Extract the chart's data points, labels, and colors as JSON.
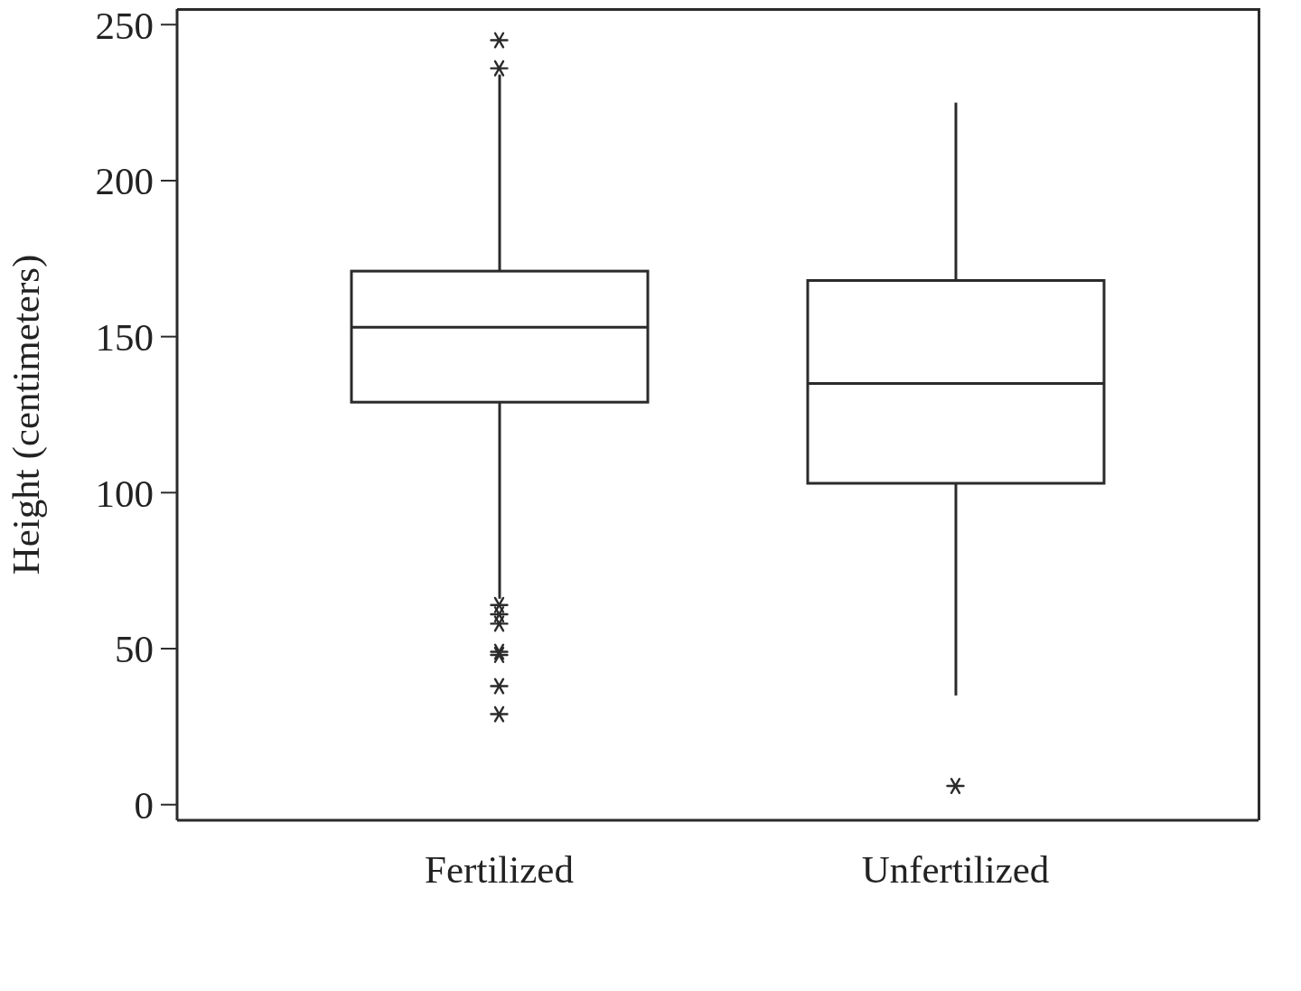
{
  "chart_data": {
    "type": "box",
    "ylabel": "Height (centimeters)",
    "categories": [
      "Fertilized",
      "Unfertilized"
    ],
    "boxes": [
      {
        "low": 66,
        "q1": 129,
        "median": 153,
        "q3": 171,
        "high": 234,
        "outliers": [
          236,
          245,
          64,
          61,
          58,
          49,
          48,
          38,
          29
        ]
      },
      {
        "low": 35,
        "q1": 103,
        "median": 135,
        "q3": 168,
        "high": 225,
        "outliers": [
          6
        ]
      }
    ],
    "color": "#2b2b2b",
    "ylim": [
      -5,
      255
    ],
    "yticks": [
      0,
      50,
      100,
      150,
      200,
      250
    ]
  }
}
